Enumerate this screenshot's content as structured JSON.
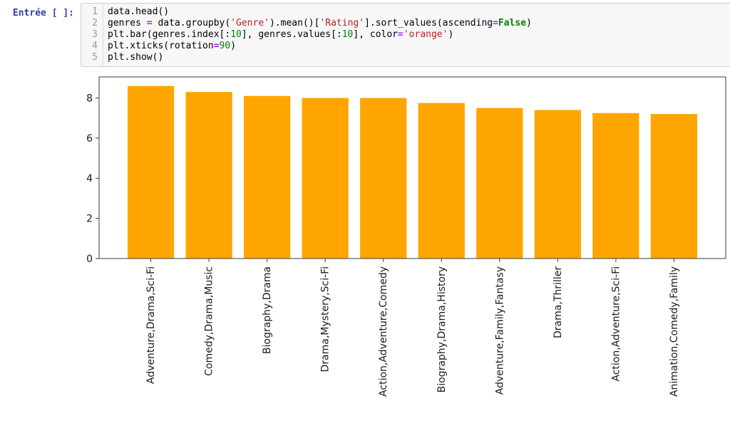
{
  "notebook": {
    "input_prompt": "Entrée [ ]:",
    "code_lines": [
      {
        "number": "1",
        "tokens": [
          {
            "t": "data.head()",
            "c": "plain"
          }
        ]
      },
      {
        "number": "2",
        "tokens": [
          {
            "t": "genres ",
            "c": "plain"
          },
          {
            "t": "=",
            "c": "op"
          },
          {
            "t": " data.groupby(",
            "c": "plain"
          },
          {
            "t": "'Genre'",
            "c": "str"
          },
          {
            "t": ").mean()[",
            "c": "plain"
          },
          {
            "t": "'Rating'",
            "c": "str"
          },
          {
            "t": "].sort_values(ascending",
            "c": "plain"
          },
          {
            "t": "=",
            "c": "op"
          },
          {
            "t": "False",
            "c": "kw"
          },
          {
            "t": ")",
            "c": "plain"
          }
        ]
      },
      {
        "number": "3",
        "tokens": [
          {
            "t": "plt.bar(genres.index[:",
            "c": "plain"
          },
          {
            "t": "10",
            "c": "num"
          },
          {
            "t": "], genres.values[:",
            "c": "plain"
          },
          {
            "t": "10",
            "c": "num"
          },
          {
            "t": "], color",
            "c": "plain"
          },
          {
            "t": "=",
            "c": "op"
          },
          {
            "t": "'orange'",
            "c": "str"
          },
          {
            "t": ")",
            "c": "plain"
          }
        ]
      },
      {
        "number": "4",
        "tokens": [
          {
            "t": "plt.xticks(rotation",
            "c": "plain"
          },
          {
            "t": "=",
            "c": "op"
          },
          {
            "t": "90",
            "c": "num"
          },
          {
            "t": ")",
            "c": "plain"
          }
        ]
      },
      {
        "number": "5",
        "tokens": [
          {
            "t": "plt.show()",
            "c": "plain"
          }
        ]
      }
    ]
  },
  "chart_data": {
    "type": "bar",
    "title": "",
    "xlabel": "",
    "ylabel": "",
    "categories": [
      "Adventure,Drama,Sci-Fi",
      "Comedy,Drama,Music",
      "Biography,Drama",
      "Drama,Mystery,Sci-Fi",
      "Action,Adventure,Comedy",
      "Biography,Drama,History",
      "Adventure,Family,Fantasy",
      "Drama,Thriller",
      "Action,Adventure,Sci-Fi",
      "Animation,Comedy,Family"
    ],
    "values": [
      8.6,
      8.3,
      8.1,
      8.0,
      8.0,
      7.75,
      7.5,
      7.4,
      7.25,
      7.2
    ],
    "yticks": [
      0,
      2,
      4,
      6,
      8
    ],
    "ylim": [
      0,
      9.05
    ],
    "xlim": [
      -0.89,
      9.89
    ],
    "bar_width_units": 0.8,
    "tick_rotation": 90,
    "grid": false,
    "legend_position": "none",
    "bar_color": "#FFA500",
    "axis_color": "#3c3c3c"
  },
  "colors": {
    "prompt": "#303F9F",
    "cell_bg": "#f7f7f7",
    "cell_border": "#cfcfcf",
    "gutter_border": "#dddddd",
    "line_number": "#999999",
    "token_string": "#BA2121",
    "token_keyword": "#008000",
    "token_number": "#008800",
    "token_operator": "#AA22FF",
    "bar": "#FFA500"
  }
}
